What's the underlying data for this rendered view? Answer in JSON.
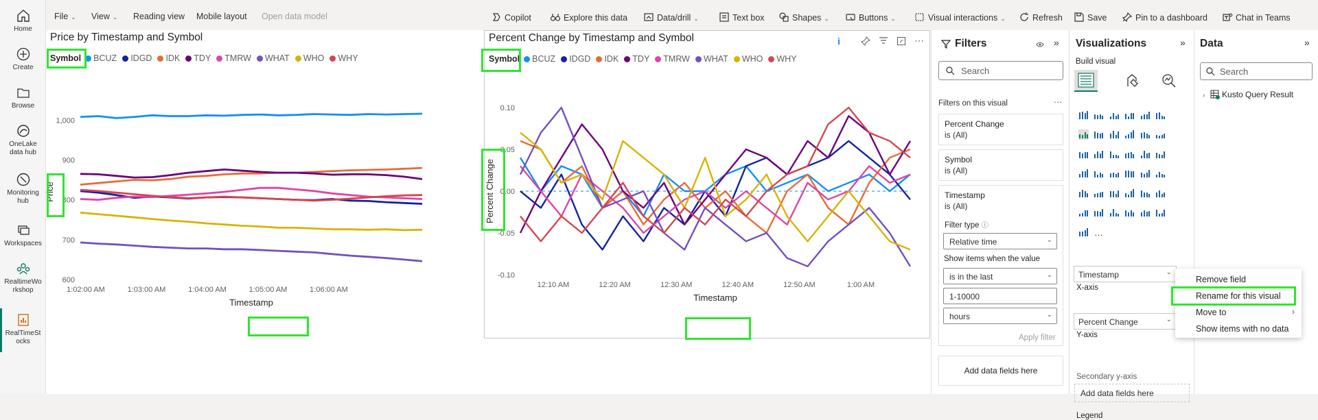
{
  "rail": {
    "items": [
      {
        "label": "Home",
        "icon": "home-icon"
      },
      {
        "label": "Create",
        "icon": "plus-circle-icon"
      },
      {
        "label": "Browse",
        "icon": "folder-icon"
      },
      {
        "label": "OneLake data hub",
        "line1": "OneLake",
        "line2": "data hub",
        "icon": "onelake-icon"
      },
      {
        "label": "Monitoring hub",
        "line1": "Monitoring",
        "line2": "hub",
        "icon": "monitor-icon"
      },
      {
        "label": "Workspaces",
        "icon": "workspaces-icon"
      },
      {
        "label": "RealtimeWorkshop",
        "line1": "RealtimeWo",
        "line2": "rkshop",
        "icon": "workshop-icon"
      },
      {
        "label": "RealTimeStocks",
        "line1": "RealTimeSt",
        "line2": "ocks",
        "icon": "report-icon"
      }
    ]
  },
  "toolbar": {
    "file": "File",
    "view": "View",
    "reading_view": "Reading view",
    "mobile_layout": "Mobile layout",
    "open_data_model": "Open data model",
    "copilot": "Copilot",
    "explore": "Explore this data",
    "data_drill": "Data/drill",
    "text_box": "Text box",
    "shapes": "Shapes",
    "buttons": "Buttons",
    "visual_interactions": "Visual interactions",
    "refresh": "Refresh",
    "save": "Save",
    "pin": "Pin to a dashboard",
    "teams": "Chat in Teams"
  },
  "legend": {
    "title": "Symbol",
    "items": [
      {
        "name": "BCUZ",
        "color": "#118DFF"
      },
      {
        "name": "IDGD",
        "color": "#12239E"
      },
      {
        "name": "IDK",
        "color": "#E66C37"
      },
      {
        "name": "TDY",
        "color": "#6B007B"
      },
      {
        "name": "TMRW",
        "color": "#E044A7"
      },
      {
        "name": "WHAT",
        "color": "#744EC2"
      },
      {
        "name": "WHO",
        "color": "#D9B300"
      },
      {
        "name": "WHY",
        "color": "#D64550"
      }
    ]
  },
  "chart_data": [
    {
      "type": "line",
      "title": "Price by Timestamp and Symbol",
      "xlabel": "Timestamp",
      "ylabel": "Price",
      "x_ticks": [
        "1:02:00 AM",
        "1:03:00 AM",
        "1:04:00 AM",
        "1:05:00 AM",
        "1:06:00 AM"
      ],
      "y_ticks": [
        "600",
        "700",
        "800",
        "900",
        "1,000"
      ],
      "ylim": [
        600,
        1040
      ],
      "series": [
        {
          "name": "BCUZ",
          "values": [
            1008,
            1010,
            1005,
            1008,
            1012,
            1010,
            1010,
            1012,
            1011,
            1013,
            1014,
            1012,
            1013,
            1015,
            1014,
            1013,
            1015,
            1014,
            1015,
            1016
          ]
        },
        {
          "name": "IDGD",
          "values": [
            822,
            818,
            812,
            805,
            808,
            806,
            803,
            806,
            807,
            806,
            804,
            802,
            800,
            799,
            802,
            798,
            797,
            794,
            792,
            790
          ]
        },
        {
          "name": "IDK",
          "values": [
            838,
            842,
            846,
            850,
            849,
            852,
            858,
            860,
            864,
            866,
            866,
            868,
            868,
            870,
            872,
            874,
            875,
            876,
            878,
            880
          ]
        },
        {
          "name": "TDY",
          "values": [
            865,
            864,
            860,
            856,
            857,
            862,
            868,
            872,
            876,
            873,
            870,
            868,
            868,
            866,
            863,
            864,
            864,
            862,
            858,
            852
          ]
        },
        {
          "name": "TMRW",
          "values": [
            802,
            800,
            805,
            808,
            807,
            810,
            813,
            816,
            820,
            825,
            830,
            830,
            826,
            822,
            816,
            812,
            808,
            806,
            804,
            802
          ]
        },
        {
          "name": "WHAT",
          "values": [
            693,
            690,
            688,
            685,
            682,
            680,
            678,
            678,
            676,
            676,
            674,
            672,
            670,
            668,
            664,
            660,
            657,
            654,
            650,
            646
          ]
        },
        {
          "name": "WHO",
          "values": [
            768,
            764,
            760,
            756,
            752,
            748,
            745,
            741,
            738,
            735,
            733,
            730,
            730,
            728,
            726,
            726,
            725,
            726,
            724,
            725
          ]
        },
        {
          "name": "WHY",
          "values": [
            825,
            822,
            818,
            814,
            810,
            807,
            804,
            806,
            808,
            806,
            804,
            802,
            800,
            798,
            800,
            803,
            806,
            809,
            811,
            812
          ]
        }
      ]
    },
    {
      "type": "line",
      "title": "Percent Change by Timestamp and Symbol",
      "xlabel": "Timestamp",
      "ylabel": "Percent Change",
      "x_ticks": [
        "12:10 AM",
        "12:20 AM",
        "12:30 AM",
        "12:40 AM",
        "12:50 AM",
        "1:00 AM"
      ],
      "y_ticks": [
        "-0.10",
        "-0.05",
        "0.00",
        "0.05",
        "0.10"
      ],
      "ylim": [
        -0.1,
        0.1
      ],
      "series": [
        {
          "name": "BCUZ",
          "values": [
            0.04,
            0.0,
            0.03,
            0.02,
            -0.02,
            0.0,
            -0.03,
            0.02,
            0.0,
            0.0,
            0.02,
            0.03,
            0.0,
            0.01,
            0.02,
            0.0,
            0.01,
            0.02,
            0.0,
            0.02
          ]
        },
        {
          "name": "IDGD",
          "values": [
            0.0,
            -0.02,
            0.02,
            -0.04,
            -0.07,
            -0.03,
            -0.06,
            -0.02,
            -0.04,
            0.0,
            -0.03,
            0.03,
            0.04,
            0.02,
            0.03,
            0.04,
            0.06,
            0.04,
            0.02,
            -0.01
          ]
        },
        {
          "name": "IDK",
          "values": [
            0.06,
            0.05,
            0.01,
            0.03,
            -0.02,
            0.0,
            -0.04,
            -0.01,
            0.01,
            -0.02,
            0.0,
            -0.03,
            -0.05,
            0.0,
            0.02,
            -0.02,
            -0.04,
            0.01,
            0.04,
            0.05
          ]
        },
        {
          "name": "TDY",
          "values": [
            -0.05,
            0.0,
            0.04,
            0.08,
            0.05,
            0.0,
            -0.02,
            0.01,
            -0.04,
            -0.01,
            0.02,
            0.05,
            0.04,
            0.02,
            0.06,
            0.04,
            0.09,
            0.07,
            0.02,
            0.06
          ]
        },
        {
          "name": "TMRW",
          "values": [
            0.03,
            0.0,
            -0.03,
            0.02,
            0.0,
            -0.02,
            -0.05,
            -0.03,
            -0.01,
            0.0,
            -0.02,
            0.0,
            -0.02,
            -0.04,
            0.01,
            -0.01,
            0.0,
            0.03,
            0.01,
            0.02
          ]
        },
        {
          "name": "WHAT",
          "values": [
            0.02,
            0.07,
            0.1,
            0.04,
            -0.02,
            -0.01,
            0.0,
            -0.05,
            -0.07,
            -0.02,
            -0.04,
            -0.06,
            -0.05,
            -0.08,
            -0.09,
            -0.06,
            -0.04,
            -0.02,
            -0.05,
            -0.09
          ]
        },
        {
          "name": "WHO",
          "values": [
            0.07,
            0.05,
            0.01,
            0.02,
            -0.01,
            0.06,
            0.04,
            0.02,
            -0.02,
            0.04,
            -0.03,
            -0.01,
            0.02,
            -0.03,
            -0.06,
            -0.03,
            0.0,
            -0.03,
            -0.06,
            -0.07
          ]
        },
        {
          "name": "WHY",
          "values": [
            -0.03,
            -0.06,
            -0.03,
            -0.05,
            -0.02,
            0.01,
            -0.03,
            -0.05,
            -0.02,
            -0.04,
            -0.01,
            -0.03,
            0.0,
            0.02,
            0.03,
            0.08,
            0.1,
            0.07,
            0.06,
            0.04
          ]
        }
      ]
    }
  ],
  "filters": {
    "title": "Filters",
    "search_placeholder": "Search",
    "section": "Filters on this visual",
    "cards": [
      {
        "title": "Percent Change",
        "value": "is (All)"
      },
      {
        "title": "Symbol",
        "value": "is (All)"
      }
    ],
    "timestamp": {
      "title": "Timestamp",
      "value": "is (All)",
      "filter_type_label": "Filter type",
      "filter_type": "Relative time",
      "show_items_label": "Show items when the value",
      "condition": "is in the last",
      "amount": "1-10000",
      "unit": "hours",
      "apply": "Apply filter"
    },
    "add_fields": "Add data fields here"
  },
  "visualizations": {
    "title": "Visualizations",
    "build_visual": "Build visual",
    "xaxis_label": "X-axis",
    "xaxis_field": "Timestamp",
    "yaxis_label": "Y-axis",
    "yaxis_field": "Percent Change",
    "secondary_label": "Secondary y-axis",
    "secondary_add": "Add data fields here",
    "legend_label": "Legend",
    "more": "..."
  },
  "data_pane": {
    "title": "Data",
    "search_placeholder": "Search",
    "table": "Kusto Query Result"
  },
  "context_menu": {
    "items": [
      "Remove field",
      "Rename for this visual",
      "Move to",
      "Show items with no data"
    ]
  }
}
